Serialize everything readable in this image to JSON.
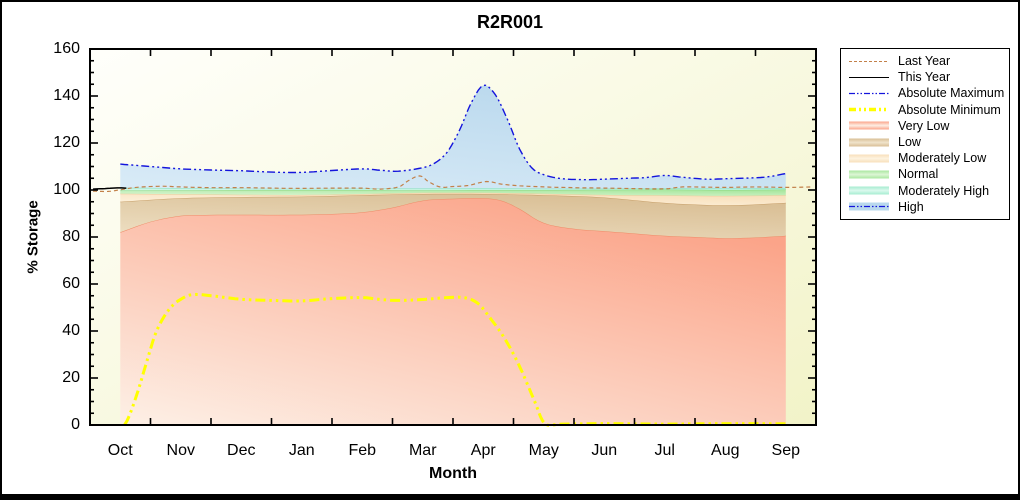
{
  "chart_data": {
    "type": "area",
    "title": "R2R001",
    "xlabel": "Month",
    "ylabel": "% Storage",
    "ylim": [
      0,
      160
    ],
    "y_major_step": 20,
    "y_minor_step": 5,
    "y_ticks": [
      0,
      20,
      40,
      60,
      80,
      100,
      120,
      140,
      160
    ],
    "months": [
      "Oct",
      "Nov",
      "Dec",
      "Jan",
      "Feb",
      "Mar",
      "Apr",
      "May",
      "Jun",
      "Jul",
      "Aug",
      "Sep"
    ],
    "plot_background": {
      "from": "#fffffb",
      "to": "#f2f3c8"
    },
    "grid": false,
    "legend_position": "right-outside",
    "bands": [
      {
        "name": "Very Low",
        "color": "#fba489",
        "light": "#fdf0e6",
        "edge": "#ee8a66",
        "top": {
          "x": [
            0,
            0.5,
            1,
            1.5,
            2,
            2.5,
            3,
            3.5,
            4,
            4.5,
            5,
            5.5,
            6,
            6.3,
            6.6,
            7,
            7.5,
            8,
            8.5,
            9,
            9.5,
            10,
            10.5,
            11
          ],
          "v": [
            82,
            86.5,
            89,
            89.4,
            89.5,
            89.4,
            89.5,
            89.8,
            90.5,
            92.5,
            95.5,
            96.3,
            96.5,
            95.5,
            92,
            86,
            83.5,
            82.5,
            81.5,
            80.5,
            80,
            79.5,
            79.8,
            80.5
          ]
        }
      },
      {
        "name": "Low",
        "color": "#d9be94",
        "light": "#eee0c4",
        "edge": "#c69e68",
        "top": {
          "x": [
            0,
            1,
            2,
            3,
            4,
            5,
            6,
            7,
            8,
            9,
            10,
            11
          ],
          "v": [
            95,
            96.5,
            97,
            97.2,
            97.8,
            98.3,
            98.3,
            97.8,
            96.8,
            94.5,
            93.5,
            94.5
          ]
        }
      },
      {
        "name": "Moderately Low",
        "color": "#f8dfba",
        "light": "#fdf3e0",
        "edge": "#ecca98",
        "top": {
          "x": [
            0,
            1,
            2,
            3,
            4,
            5,
            6,
            7,
            8,
            9,
            10,
            11
          ],
          "v": [
            98.4,
            98.2,
            98,
            97.9,
            98.3,
            98.8,
            98.8,
            98.4,
            97.9,
            97.7,
            97.5,
            97.8
          ]
        }
      },
      {
        "name": "Normal",
        "color": "#a9e79f",
        "light": "#ddf6d6",
        "edge": "#90d884",
        "top": {
          "x": [
            0,
            1,
            2,
            3,
            4,
            5,
            6,
            7,
            8,
            9,
            10,
            11
          ],
          "v": [
            99.8,
            99.9,
            100,
            100,
            100,
            99.9,
            100,
            100,
            100.1,
            100.2,
            100,
            100.2
          ]
        }
      },
      {
        "name": "Moderately High",
        "color": "#a5ecd0",
        "light": "#dcf9ee",
        "edge": "#8adfc0",
        "top": {
          "x": [
            0,
            1,
            2,
            3,
            4,
            5,
            6,
            7,
            8,
            9,
            10,
            11
          ],
          "v": [
            101,
            100.8,
            100.6,
            100.5,
            100.6,
            100.7,
            100.8,
            100.6,
            100.6,
            100.8,
            100.7,
            100.9
          ]
        }
      },
      {
        "name": "High",
        "color": "#b9d8ed",
        "light": "#d9ebf7",
        "edge": "",
        "top": {
          "x": [
            0,
            0.5,
            1,
            1.5,
            2,
            2.5,
            3,
            3.5,
            4,
            4.3,
            4.6,
            5,
            5.2,
            5.4,
            5.6,
            5.8,
            6,
            6.2,
            6.4,
            6.6,
            6.8,
            7,
            7.3,
            7.7,
            8,
            8.4,
            8.7,
            9,
            9.3,
            9.7,
            10,
            10.4,
            10.7,
            11
          ],
          "v": [
            111,
            110,
            109,
            108.5,
            108.2,
            107.6,
            107.5,
            108.3,
            109,
            108.4,
            108,
            109.5,
            111.5,
            116,
            125,
            137,
            144.5,
            140.5,
            130,
            117.5,
            109.5,
            106.5,
            104.8,
            104.4,
            104.6,
            105,
            105.3,
            106.2,
            105.4,
            104.6,
            104.8,
            105.1,
            105.6,
            107
          ]
        }
      }
    ],
    "lines": [
      {
        "name": "Absolute Minimum",
        "color": "#ffff00",
        "width": 3,
        "dash": "10 4 2.5 4 2.5 4",
        "x": [
          0.07,
          0.15,
          0.3,
          0.45,
          0.6,
          0.8,
          1,
          1.2,
          1.5,
          2,
          2.5,
          3,
          3.5,
          4,
          4.3,
          4.6,
          5,
          5.3,
          5.65,
          5.9,
          6.1,
          6.35,
          6.6,
          6.85,
          7.02,
          7.3,
          8,
          9,
          10,
          11
        ],
        "v": [
          0,
          4,
          15,
          28,
          40,
          49,
          53.5,
          55.5,
          55,
          53.5,
          53,
          52.8,
          53.8,
          54.2,
          53.4,
          53,
          53.4,
          54,
          54.3,
          52,
          46,
          37,
          25,
          10,
          0.6,
          0.4,
          0.6,
          0.4,
          0.6,
          0.5
        ]
      },
      {
        "name": "Last Year",
        "color": "#c28049",
        "width": 1.2,
        "dash": "4 3",
        "x": [
          -0.45,
          -0.2,
          0,
          0.3,
          0.7,
          1,
          1.5,
          2,
          2.5,
          3,
          3.5,
          4,
          4.3,
          4.6,
          4.75,
          4.95,
          5.1,
          5.3,
          5.5,
          5.75,
          6.05,
          6.3,
          6.6,
          7,
          7.5,
          8,
          8.5,
          9,
          9.3,
          9.7,
          10,
          10.5,
          11,
          11.45
        ],
        "v": [
          99.5,
          99.4,
          100.1,
          101.2,
          101.6,
          101.3,
          101,
          101,
          100.8,
          100.7,
          100.8,
          100.8,
          100.4,
          101.3,
          103.8,
          106,
          103.5,
          101.2,
          101.5,
          101.9,
          103.6,
          102.5,
          101.8,
          101.3,
          101,
          100.8,
          100.6,
          100.5,
          101.3,
          101.2,
          101.1,
          101.3,
          101.1,
          101.3
        ]
      },
      {
        "name": "Absolute Maximum",
        "color": "#1414dc",
        "width": 1.4,
        "dash": "8 3 2 3 2 3",
        "x": [
          0,
          0.5,
          1,
          1.5,
          2,
          2.5,
          3,
          3.5,
          4,
          4.3,
          4.6,
          5,
          5.2,
          5.4,
          5.6,
          5.8,
          6,
          6.2,
          6.4,
          6.6,
          6.8,
          7,
          7.3,
          7.7,
          8,
          8.4,
          8.7,
          9,
          9.3,
          9.7,
          10,
          10.4,
          10.7,
          11
        ],
        "v": [
          111,
          110,
          109,
          108.5,
          108.2,
          107.6,
          107.5,
          108.3,
          109,
          108.4,
          108,
          109.5,
          111.5,
          116,
          125,
          137,
          144.5,
          140.5,
          130,
          117.5,
          109.5,
          106.5,
          104.8,
          104.4,
          104.6,
          105,
          105.3,
          106.2,
          105.4,
          104.6,
          104.8,
          105.1,
          105.6,
          107
        ]
      },
      {
        "name": "This Year",
        "color": "#000000",
        "width": 1.5,
        "dash": "",
        "x": [
          -0.45,
          -0.25,
          -0.05,
          0.1
        ],
        "v": [
          100.4,
          100.6,
          100.9,
          100.8
        ]
      }
    ]
  },
  "legend": {
    "items": [
      {
        "label": "Last Year",
        "swatch": {
          "kind": "line",
          "color": "#c28049",
          "width": 1,
          "dash": "3 2"
        }
      },
      {
        "label": "This Year",
        "swatch": {
          "kind": "line",
          "color": "#000000",
          "width": 1,
          "dash": ""
        }
      },
      {
        "label": "Absolute Maximum",
        "swatch": {
          "kind": "line",
          "color": "#1414dc",
          "width": 1.3,
          "dash": "6 2 1.5 2 1.5 2"
        }
      },
      {
        "label": "Absolute Minimum",
        "swatch": {
          "kind": "line",
          "color": "#ffff00",
          "width": 3.5,
          "dash": "7 3 2 3 2 3"
        }
      },
      {
        "label": "Very Low",
        "swatch": {
          "kind": "band",
          "color": "#fba489",
          "light": "#fdeee4"
        }
      },
      {
        "label": "Low",
        "swatch": {
          "kind": "band",
          "color": "#d9be94",
          "light": "#efe3cb"
        }
      },
      {
        "label": "Moderately Low",
        "swatch": {
          "kind": "band",
          "color": "#f8dfba",
          "light": "#fdf3e0"
        }
      },
      {
        "label": "Normal",
        "swatch": {
          "kind": "band",
          "color": "#a9e79f",
          "light": "#ddf6d6"
        }
      },
      {
        "label": "Moderately High",
        "swatch": {
          "kind": "band",
          "color": "#a5ecd0",
          "light": "#dcf9ee"
        }
      },
      {
        "label": "High",
        "swatch": {
          "kind": "band-line",
          "color": "#1414dc",
          "light": "#b9d8ed",
          "width": 1.3,
          "dash": "6 2 1.5 2 1.5 2"
        }
      }
    ]
  }
}
